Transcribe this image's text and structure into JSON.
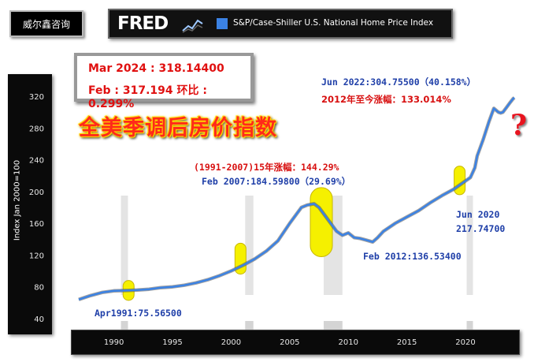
{
  "brand_label": "威尔鑫咨询",
  "fred": {
    "logo": "FRED",
    "series_title": "S&P/Case-Shiller U.S. National Home Price Index",
    "series_color": "#3b82e4"
  },
  "info_box": {
    "line1": "Mar 2024 : 318.14400",
    "line2": "Feb : 317.194  环比 : 0.299%"
  },
  "headline": "全美季调后房价指数",
  "question_mark": "?",
  "annotations": {
    "peak_2022": "Jun 2022:304.75500（40.158%）",
    "gain_since_2012": "2012年至今涨幅：133.014%",
    "run_1991_2007": "(1991-2007)15年涨幅：144.29%",
    "peak_2007": "Feb 2007:184.59800（29.69%）",
    "low_2012": "Feb 2012:136.53400",
    "jun_2020_label": "Jun 2020",
    "jun_2020_value": "217.74700",
    "apr_1991": "Apr1991:75.56500"
  },
  "chart_data": {
    "type": "line",
    "title": "S&P/Case-Shiller U.S. National Home Price Index",
    "ylabel": "Index Jan 2000=100",
    "xlabel": "",
    "ylim": [
      40,
      330
    ],
    "xlim": [
      1987,
      2024.3
    ],
    "yticks": [
      40,
      80,
      120,
      160,
      200,
      240,
      280,
      320
    ],
    "xticks": [
      1990,
      1995,
      2000,
      2005,
      2010,
      2015,
      2020
    ],
    "series": [
      {
        "name": "S&P/Case-Shiller U.S. National Home Price Index",
        "color": "#3b82e4",
        "x": [
          1987,
          1988,
          1989,
          1990,
          1991.25,
          1992,
          1993,
          1994,
          1995,
          1996,
          1997,
          1998,
          1999,
          2000,
          2001,
          2002,
          2003,
          2004,
          2005,
          2006,
          2006.5,
          2007.08,
          2007.5,
          2008,
          2008.5,
          2009,
          2009.5,
          2010,
          2010.5,
          2011,
          2011.5,
          2012.08,
          2012.5,
          2013,
          2014,
          2015,
          2016,
          2017,
          2018,
          2019,
          2020.42,
          2020.8,
          2021,
          2021.5,
          2022.0,
          2022.42,
          2022.8,
          2023.0,
          2023.2,
          2023.5,
          2023.8,
          2024.08,
          2024.17
        ],
        "values": [
          64,
          69,
          73,
          75,
          75.57,
          76,
          77,
          79,
          80,
          82,
          85,
          89,
          94,
          100,
          107,
          115,
          125,
          138,
          160,
          180,
          183,
          184.6,
          180,
          170,
          160,
          150,
          145,
          148,
          142,
          141,
          139,
          136.53,
          142,
          150,
          160,
          168,
          176,
          186,
          195,
          203,
          217.75,
          230,
          245,
          265,
          288,
          304.76,
          300,
          299,
          300,
          306,
          312,
          317.19,
          318.14
        ]
      }
    ],
    "highlights": [
      {
        "x": 1991.25,
        "y_low": 63,
        "y_high": 88
      },
      {
        "x": 2000.8,
        "y_low": 96,
        "y_high": 135
      },
      {
        "x": 2007.7,
        "y_low": 118,
        "y_high": 205
      },
      {
        "x": 2019.5,
        "y_low": 196,
        "y_high": 232
      }
    ],
    "recessions": [
      {
        "start": 1990.6,
        "end": 1991.2
      },
      {
        "start": 2001.2,
        "end": 2001.9
      },
      {
        "start": 2007.9,
        "end": 2009.5
      },
      {
        "start": 2020.1,
        "end": 2020.4
      }
    ]
  }
}
